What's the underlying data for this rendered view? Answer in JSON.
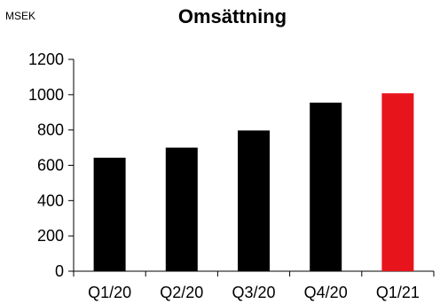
{
  "unit_label": "MSEK",
  "chart_data": {
    "type": "bar",
    "title": "Omsättning",
    "ylabel": "MSEK",
    "xlabel": "",
    "categories": [
      "Q1/20",
      "Q2/20",
      "Q3/20",
      "Q4/20",
      "Q1/21"
    ],
    "values": [
      643,
      700,
      797,
      955,
      1008
    ],
    "bar_colors": [
      "#000000",
      "#000000",
      "#000000",
      "#000000",
      "#e8141c"
    ],
    "ylim": [
      0,
      1200
    ],
    "yticks": [
      0,
      200,
      400,
      600,
      800,
      1000,
      1200
    ],
    "grid": false,
    "legend": "none"
  }
}
